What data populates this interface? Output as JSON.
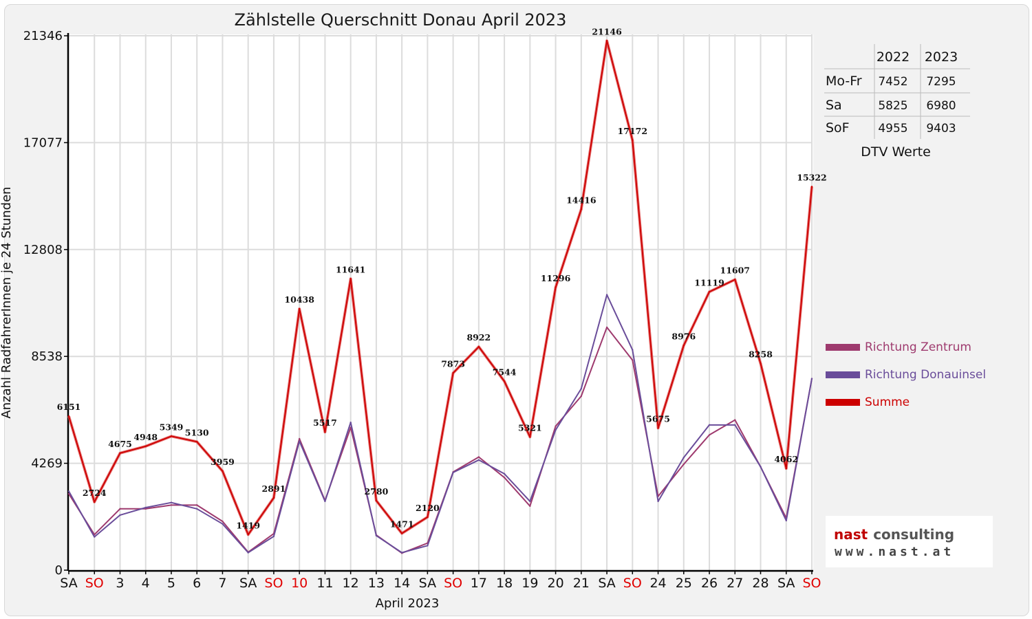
{
  "chart_data": {
    "type": "line",
    "title": "Zählstelle Querschnitt Donau April 2023",
    "xlabel": "April 2023",
    "ylabel": "Anzahl RadfahrerInnen je 24 Stunden",
    "ylim": [
      0,
      21346
    ],
    "yticks": [
      "0",
      "4269",
      "8538",
      "12808",
      "17077",
      "21346"
    ],
    "grid": true,
    "legend_position": "right",
    "categories": [
      "SA",
      "SO",
      "3",
      "4",
      "5",
      "6",
      "7",
      "SA",
      "SO",
      "10",
      "11",
      "12",
      "13",
      "14",
      "SA",
      "SO",
      "17",
      "18",
      "19",
      "20",
      "21",
      "SA",
      "SO",
      "24",
      "25",
      "26",
      "27",
      "28",
      "SA",
      "SO"
    ],
    "highlighted_categories": [
      1,
      8,
      9,
      15,
      22,
      29
    ],
    "series": [
      {
        "name": "Richtung Zentrum",
        "color": "#9e3a6e",
        "values": [
          3050,
          1420,
          2450,
          2450,
          2600,
          2600,
          1950,
          720,
          1460,
          5250,
          2780,
          5700,
          1400,
          680,
          1080,
          3920,
          4520,
          3700,
          2560,
          5750,
          6950,
          9700,
          8390,
          2950,
          4230,
          5400,
          6000,
          4130,
          2080,
          7650
        ]
      },
      {
        "name": "Richtung Donauinsel",
        "color": "#6a4d9a",
        "values": [
          3150,
          1330,
          2200,
          2500,
          2700,
          2450,
          1850,
          700,
          1350,
          5150,
          2750,
          5900,
          1380,
          700,
          980,
          3900,
          4400,
          3850,
          2750,
          5600,
          7250,
          11000,
          8800,
          2750,
          4500,
          5800,
          5800,
          4130,
          1980,
          7650
        ]
      },
      {
        "name": "Summe",
        "color": "#cc0000",
        "values": [
          6151,
          2724,
          4675,
          4948,
          5349,
          5130,
          3959,
          1419,
          2891,
          10438,
          5517,
          11641,
          2780,
          1471,
          2120,
          7873,
          8922,
          7544,
          5321,
          11296,
          14416,
          21146,
          17172,
          5675,
          8976,
          11119,
          11607,
          8258,
          4062,
          15322
        ]
      }
    ],
    "data_labels": [
      "6151",
      "2724",
      "4675",
      "4948",
      "5349",
      "5130",
      "3959",
      "1419",
      "2891",
      "10438",
      "5517",
      "11641",
      "2780",
      "1471",
      "2120",
      "7873",
      "8922",
      "7544",
      "5321",
      "11296",
      "14416",
      "21146",
      "17172",
      "5675",
      "8976",
      "11119",
      "11607",
      "8258",
      "4062",
      "15322"
    ]
  },
  "dtv_table": {
    "columns": [
      "2022",
      "2023"
    ],
    "rows": [
      {
        "label": "Mo-Fr",
        "v2022": "7452",
        "v2023": "7295"
      },
      {
        "label": "Sa",
        "v2022": "5825",
        "v2023": "6980"
      },
      {
        "label": "SoF",
        "v2022": "4955",
        "v2023": "9403"
      }
    ],
    "caption": "DTV Werte"
  },
  "logo": {
    "line1a": "nast",
    "line1b": "consulting",
    "line2": "www.nast.at",
    "color_red": "#c00000",
    "color_gray": "#555555"
  }
}
